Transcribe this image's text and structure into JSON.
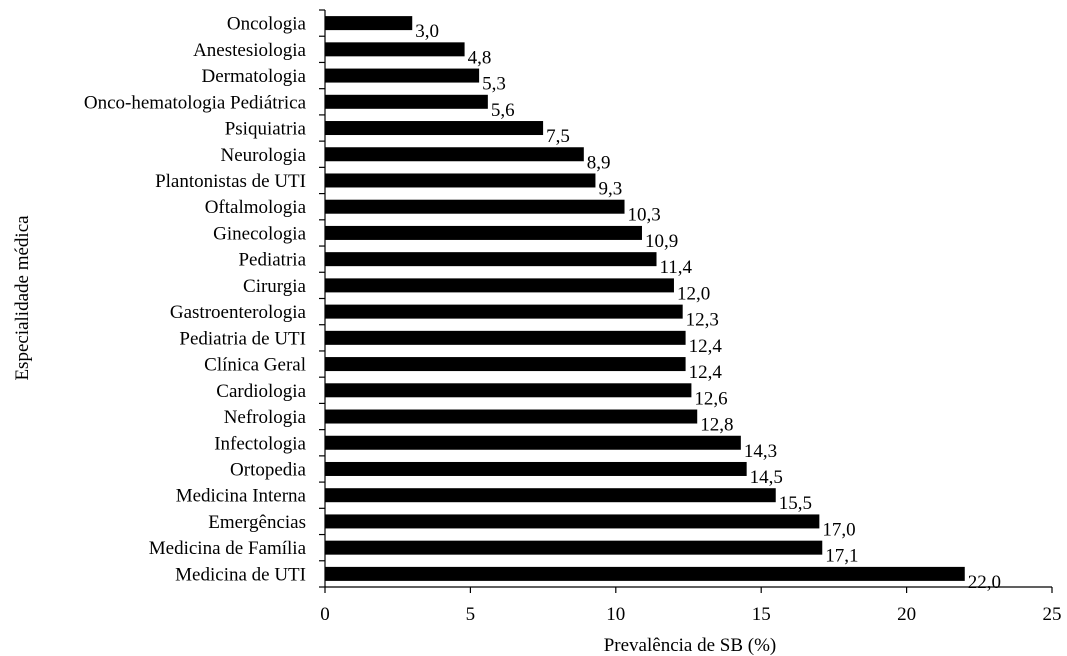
{
  "chart_data": {
    "type": "bar",
    "orientation": "horizontal",
    "xlabel": "Prevalência de SB (%)",
    "ylabel": "Especialidade médica",
    "xlim": [
      0,
      25
    ],
    "xticks": [
      "0",
      "5",
      "10",
      "15",
      "20",
      "25"
    ],
    "xtick_values": [
      0,
      5,
      10,
      15,
      20,
      25
    ],
    "grid": false,
    "bar_color": "#000000",
    "categories": [
      "Oncologia",
      "Anestesiologia",
      "Dermatologia",
      "Onco-hematologia Pediátrica",
      "Psiquiatria",
      "Neurologia",
      "Plantonistas de UTI",
      "Oftalmologia",
      "Ginecologia",
      "Pediatria",
      "Cirurgia",
      "Gastroenterologia",
      "Pediatria de UTI",
      "Clínica Geral",
      "Cardiologia",
      "Nefrologia",
      "Infectologia",
      "Ortopedia",
      "Medicina Interna",
      "Emergências",
      "Medicina de Família",
      "Medicina de UTI"
    ],
    "values": [
      3.0,
      4.8,
      5.3,
      5.6,
      7.5,
      8.9,
      9.3,
      10.3,
      10.9,
      11.4,
      12.0,
      12.3,
      12.4,
      12.4,
      12.6,
      12.8,
      14.3,
      14.5,
      15.5,
      17.0,
      17.1,
      22.0
    ],
    "value_labels": [
      "3,0",
      "4,8",
      "5,3",
      "5,6",
      "7,5",
      "8,9",
      "9,3",
      "10,3",
      "10,9",
      "11,4",
      "12,0",
      "12,3",
      "12,4",
      "12,4",
      "12,6",
      "12,8",
      "14,3",
      "14,5",
      "15,5",
      "17,0",
      "17,1",
      "22,0"
    ]
  }
}
